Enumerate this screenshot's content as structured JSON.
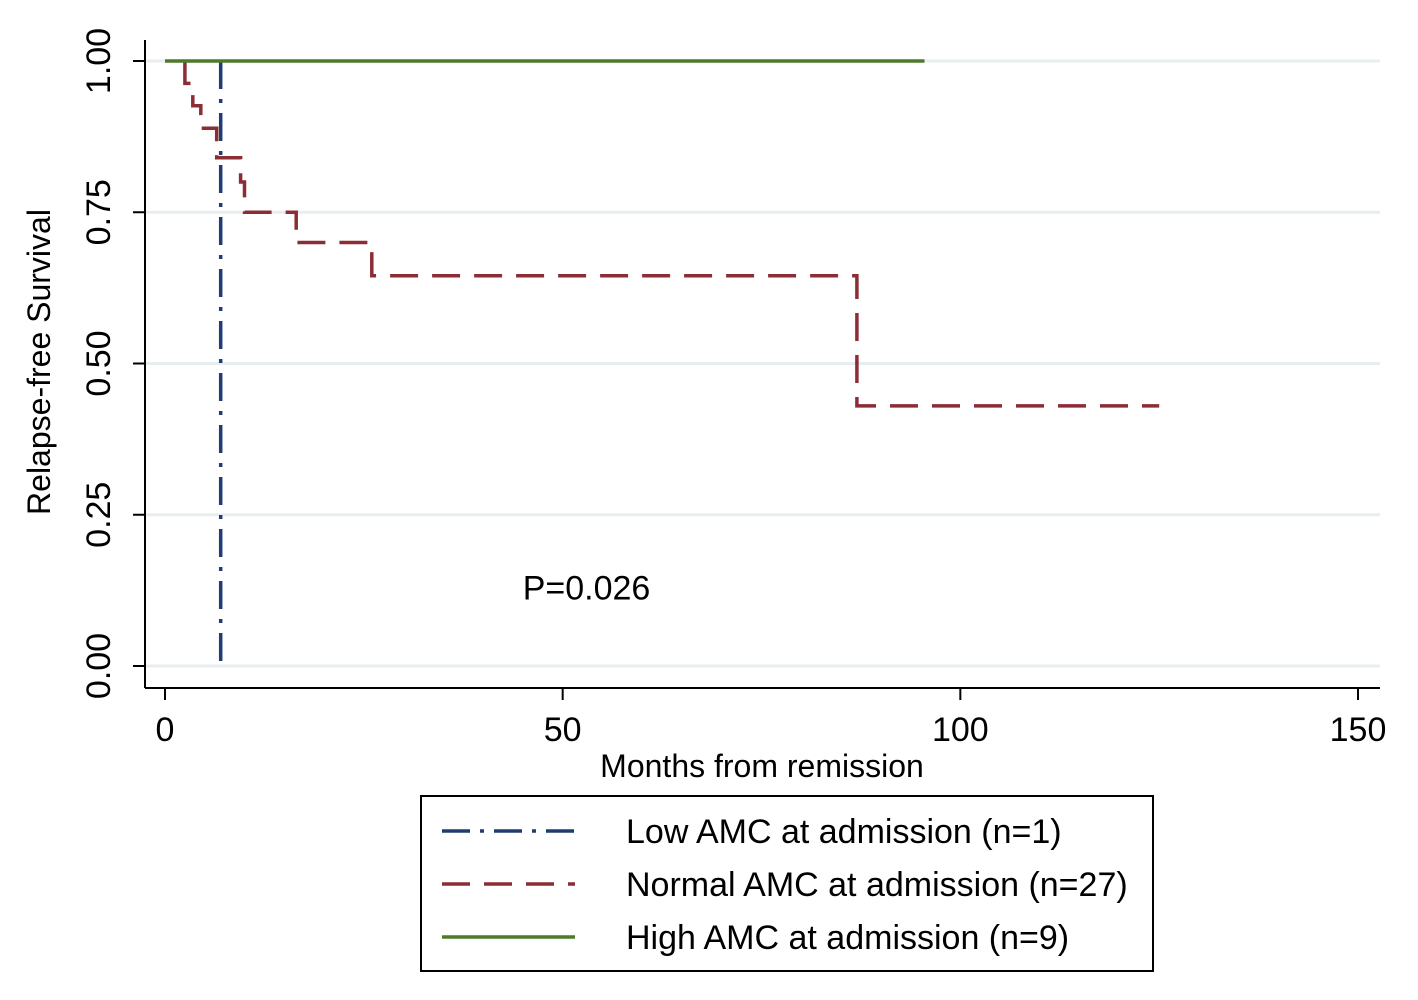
{
  "chart_data": {
    "type": "line",
    "subtype": "kaplan-meier-step",
    "title": "",
    "xlabel": "Months from remission",
    "ylabel": "Relapse-free Survival",
    "xlim": [
      0,
      150
    ],
    "ylim": [
      0,
      1
    ],
    "xticks": [
      {
        "value": 0,
        "label": "0"
      },
      {
        "value": 50,
        "label": "50"
      },
      {
        "value": 100,
        "label": "100"
      },
      {
        "value": 150,
        "label": "150"
      }
    ],
    "yticks": [
      {
        "value": 0,
        "label": "0.00"
      },
      {
        "value": 0.25,
        "label": "0.25"
      },
      {
        "value": 0.5,
        "label": "0.50"
      },
      {
        "value": 0.75,
        "label": "0.75"
      },
      {
        "value": 1,
        "label": "1.00"
      }
    ],
    "grid": "horizontal",
    "legend_position": "bottom",
    "annotation": {
      "text": "P=0.026",
      "x": 53,
      "y": 0.13
    },
    "series": [
      {
        "name": "Low AMC at admission (n=1)",
        "color": "#1f3d73",
        "style": "dash-dot",
        "points": [
          [
            7,
            1.0
          ],
          [
            7,
            0.0
          ]
        ]
      },
      {
        "name": "Normal AMC at admission (n=27)",
        "color": "#8c2d36",
        "style": "dashed",
        "points": [
          [
            2.5,
            1.0
          ],
          [
            2.5,
            0.963
          ],
          [
            3.5,
            0.963
          ],
          [
            3.5,
            0.926
          ],
          [
            4.5,
            0.926
          ],
          [
            4.5,
            0.889
          ],
          [
            6.5,
            0.889
          ],
          [
            6.5,
            0.84
          ],
          [
            9.5,
            0.84
          ],
          [
            9.5,
            0.8
          ],
          [
            10,
            0.8
          ],
          [
            10,
            0.75
          ],
          [
            16.5,
            0.75
          ],
          [
            16.5,
            0.7
          ],
          [
            26,
            0.7
          ],
          [
            26,
            0.645
          ],
          [
            87,
            0.645
          ],
          [
            87,
            0.43
          ],
          [
            125,
            0.43
          ]
        ]
      },
      {
        "name": "High AMC at admission (n=9)",
        "color": "#4e7a2c",
        "style": "solid",
        "points": [
          [
            0,
            1.0
          ],
          [
            95.5,
            1.0
          ]
        ]
      }
    ]
  }
}
